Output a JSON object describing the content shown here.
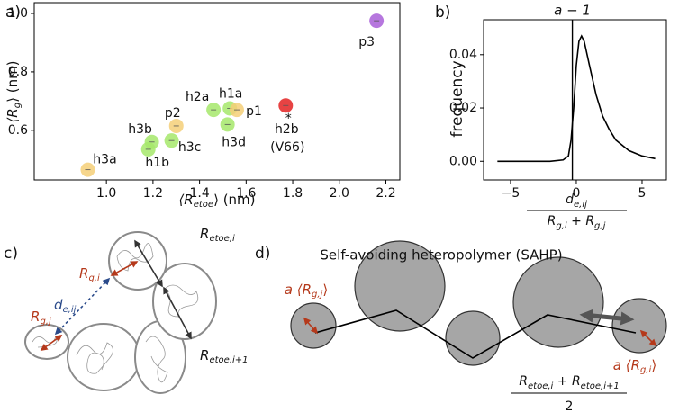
{
  "chart_data": [
    {
      "type": "scatter",
      "x_label": [
        "⟨R",
        "etoe",
        "⟩ (nm)"
      ],
      "y_label": [
        "⟨R",
        "g",
        "⟩ (nm)"
      ],
      "point_labels": [
        "h3a",
        "h3b",
        "h1b",
        "h3c",
        "p2",
        "h2a",
        "h1a",
        "p1",
        "h3d",
        "h2b",
        "p3"
      ],
      "x": [
        0.92,
        1.195,
        1.18,
        1.28,
        1.3,
        1.46,
        1.53,
        1.56,
        1.52,
        1.77,
        2.16
      ],
      "values": [
        0.465,
        0.56,
        0.535,
        0.565,
        0.615,
        0.67,
        0.675,
        0.67,
        0.62,
        0.685,
        0.975
      ],
      "colors": [
        "#f5cf78",
        "#a6e86b",
        "#a6e86b",
        "#a6e86b",
        "#f5cf78",
        "#a6e86b",
        "#a6e86b",
        "#f5cf78",
        "#a6e86b",
        "#e32222",
        "#a95fd8"
      ],
      "annotations": [
        "*",
        "(V66)"
      ],
      "xlim": [
        0.69,
        2.26
      ],
      "ylim": [
        0.43,
        1.037
      ],
      "xticks": [
        {
          "value": 1.0,
          "label": "1.0"
        },
        1.2,
        1.4,
        1.6,
        1.8,
        {
          "value": 2.0,
          "label": "2.0"
        },
        2.2
      ],
      "yticks": [
        0.6,
        0.8,
        {
          "value": 1.0,
          "label": "1.0"
        }
      ]
    },
    {
      "type": "line",
      "x_label": {
        "numerator": [
          "d",
          "e,ij"
        ],
        "denominator": [
          "R",
          "g,i",
          " + R",
          "g,j"
        ]
      },
      "y_label": "frequency",
      "x": [
        -6,
        -4,
        -2,
        -1,
        -0.6,
        -0.4,
        -0.2,
        0,
        0.2,
        0.4,
        0.6,
        1,
        1.5,
        2,
        2.5,
        3,
        4,
        5,
        6
      ],
      "values": [
        0,
        0,
        0,
        0.0005,
        0.002,
        0.008,
        0.02,
        0.036,
        0.045,
        0.047,
        0.045,
        0.036,
        0.025,
        0.017,
        0.012,
        0.008,
        0.004,
        0.002,
        0.001
      ],
      "color": "#000000",
      "vline": {
        "x": -0.3,
        "label": "a − 1"
      },
      "xlim": [
        -7.05,
        6.85
      ],
      "ylim": [
        -0.007,
        0.0531
      ],
      "xticks": [
        {
          "value": -5,
          "label": "−5"
        },
        0,
        5
      ],
      "yticks": [
        {
          "value": 0,
          "label": "0.00"
        },
        0.02,
        0.04
      ]
    }
  ],
  "panels": [
    "a)",
    "b)",
    "c)",
    "d)"
  ],
  "diagram_c": {
    "labels": [
      [
        "R",
        "etoe,i"
      ],
      [
        "R",
        "g,i"
      ],
      [
        "d",
        "e,ij"
      ],
      [
        "R",
        "g,j"
      ],
      [
        "R",
        "etoe,i+1"
      ]
    ]
  },
  "diagram_d": {
    "title": "Self-avoiding heteropolymer (SAHP)",
    "left_label": [
      "a ⟨R",
      "g,j",
      "⟩"
    ],
    "right_label": [
      "a ⟨R",
      "g,i",
      "⟩"
    ],
    "fraction": {
      "numerator": [
        "R",
        "etoe,i",
        " + R",
        "etoe,i+1"
      ],
      "denominator": "2"
    }
  }
}
